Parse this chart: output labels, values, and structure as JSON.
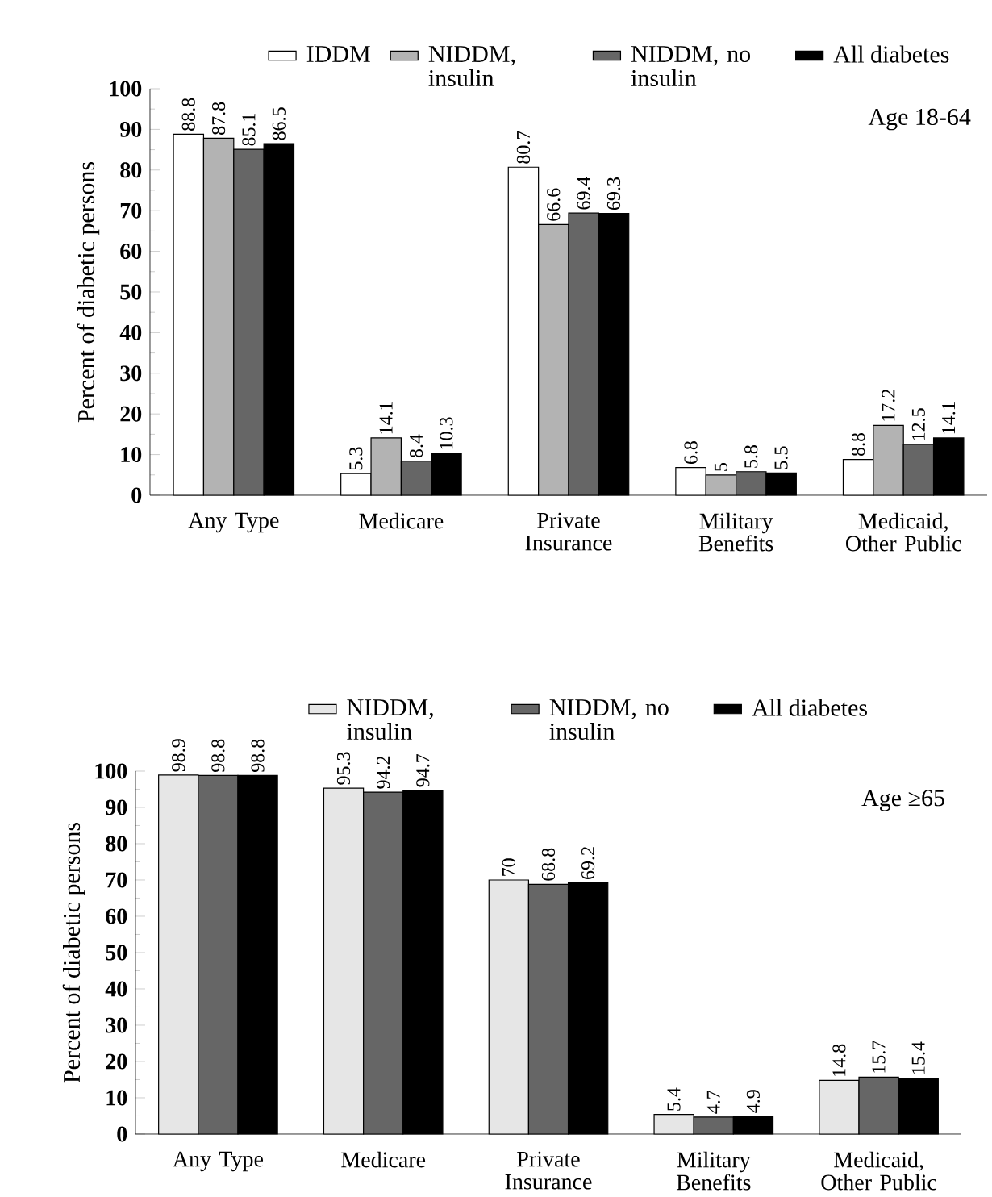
{
  "chart_data": [
    {
      "type": "bar",
      "categories": [
        "Any Type",
        "Medicare",
        "Private Insurance",
        "Military Benefits",
        "Medicaid, Other Public"
      ],
      "ylabel": "Percent of diabetic persons",
      "ylim": [
        0,
        100
      ],
      "yticks": [
        0,
        10,
        20,
        30,
        40,
        50,
        60,
        70,
        80,
        90,
        100
      ],
      "legend": "top",
      "annotations": [
        "Age 18-64"
      ],
      "series": [
        {
          "name": "IDDM",
          "color": "#ffffff",
          "values": [
            88.8,
            5.3,
            80.7,
            6.8,
            8.8
          ],
          "value_labels": [
            "88.8",
            "5.3",
            "80.7",
            "6.8",
            "8.8"
          ]
        },
        {
          "name": "NIDDM, insulin",
          "color": "#b3b3b3",
          "values": [
            87.8,
            14.1,
            66.6,
            5,
            17.2
          ],
          "value_labels": [
            "87.8",
            "14.1",
            "66.6",
            "5",
            "17.2"
          ]
        },
        {
          "name": "NIDDM, no insulin",
          "color": "#666666",
          "values": [
            85.1,
            8.4,
            69.4,
            5.8,
            12.5
          ],
          "value_labels": [
            "85.1",
            "8.4",
            "69.4",
            "5.8",
            "12.5"
          ]
        },
        {
          "name": "All diabetes",
          "color": "#000000",
          "values": [
            86.5,
            10.3,
            69.3,
            5.5,
            14.1
          ],
          "value_labels": [
            "86.5",
            "10.3",
            "69.3",
            "5.5",
            "14.1"
          ]
        }
      ]
    },
    {
      "type": "bar",
      "categories": [
        "Any Type",
        "Medicare",
        "Private Insurance",
        "Military Benefits",
        "Medicaid, Other Public"
      ],
      "ylabel": "Percent of diabetic persons",
      "ylim": [
        0,
        100
      ],
      "yticks": [
        0,
        10,
        20,
        30,
        40,
        50,
        60,
        70,
        80,
        90,
        100
      ],
      "legend": "top",
      "annotations": [
        "Age ≥65"
      ],
      "series": [
        {
          "name": "NIDDM, insulin",
          "color": "#e6e6e6",
          "values": [
            98.9,
            95.3,
            70,
            5.4,
            14.8
          ],
          "value_labels": [
            "98.9",
            "95.3",
            "70",
            "5.4",
            "14.8"
          ]
        },
        {
          "name": "NIDDM, no insulin",
          "color": "#666666",
          "values": [
            98.8,
            94.2,
            68.8,
            4.7,
            15.7
          ],
          "value_labels": [
            "98.8",
            "94.2",
            "68.8",
            "4.7",
            "15.7"
          ]
        },
        {
          "name": "All diabetes",
          "color": "#000000",
          "values": [
            98.8,
            94.7,
            69.2,
            4.9,
            15.4
          ],
          "value_labels": [
            "98.8",
            "94.7",
            "69.2",
            "4.9",
            "15.4"
          ]
        }
      ]
    }
  ]
}
